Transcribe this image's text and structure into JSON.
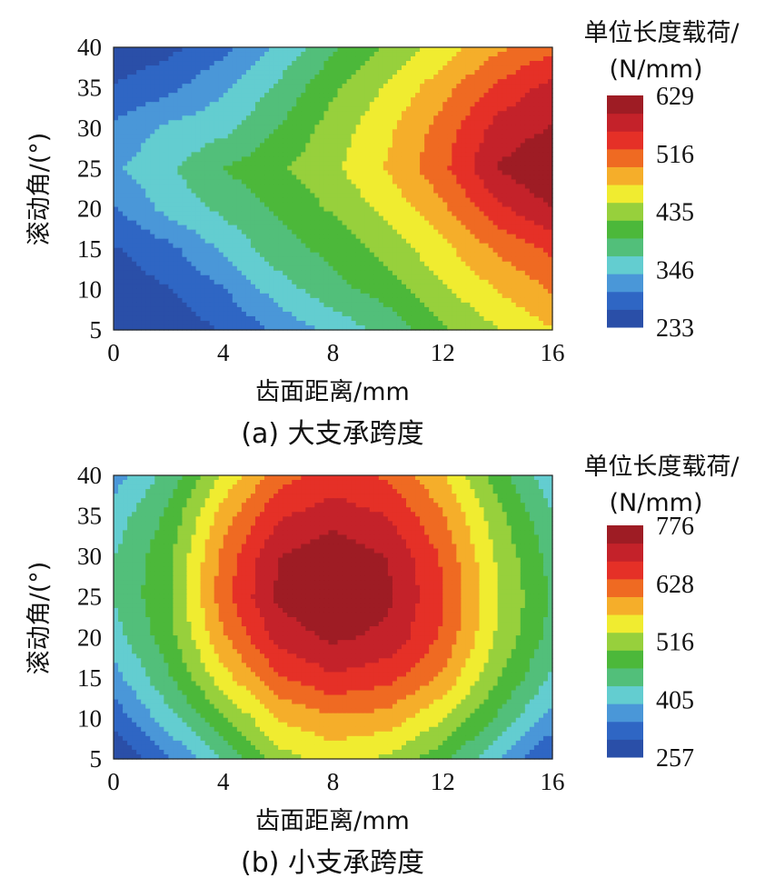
{
  "colors": {
    "palette": [
      "#2a4fa8",
      "#2f66c4",
      "#4a97d8",
      "#63cdd0",
      "#52bf7a",
      "#4cb83a",
      "#97d03c",
      "#f0ec30",
      "#f5ae2a",
      "#ef6a22",
      "#e53027",
      "#c4222a",
      "#9e1c24"
    ],
    "background": "#ffffff",
    "contour_line": "#222222"
  },
  "chart_data": [
    {
      "type": "heatmap",
      "caption": "(a)  大支承跨度",
      "xlabel": "齿面距离/mm",
      "ylabel": "滚动角/(°)",
      "xlim": [
        0,
        16
      ],
      "ylim": [
        5,
        40
      ],
      "xticks": [
        "0",
        "4",
        "8",
        "12",
        "16"
      ],
      "yticks": [
        "5",
        "10",
        "15",
        "20",
        "25",
        "30",
        "35",
        "40"
      ],
      "colorbar": {
        "title_line1": "单位长度载荷/",
        "title_line2": "(N/mm)",
        "ticks": [
          "629",
          "516",
          "435",
          "346",
          "233"
        ],
        "min": 233,
        "max": 629
      },
      "grid": false,
      "x": [
        0,
        2,
        4,
        6,
        8,
        10,
        12,
        14,
        16
      ],
      "y": [
        5,
        10,
        15,
        20,
        25,
        30,
        35,
        40
      ],
      "z": [
        [
          233,
          245,
          265,
          300,
          335,
          365,
          410,
          445,
          475
        ],
        [
          245,
          262,
          292,
          340,
          375,
          400,
          442,
          478,
          510
        ],
        [
          260,
          285,
          330,
          372,
          395,
          428,
          468,
          512,
          545
        ],
        [
          290,
          335,
          362,
          390,
          420,
          455,
          500,
          560,
          600
        ],
        [
          318,
          350,
          385,
          410,
          440,
          480,
          530,
          600,
          629
        ],
        [
          300,
          330,
          345,
          385,
          430,
          470,
          520,
          580,
          600
        ],
        [
          265,
          285,
          320,
          360,
          410,
          450,
          495,
          545,
          580
        ],
        [
          240,
          255,
          285,
          330,
          380,
          420,
          460,
          500,
          530
        ]
      ]
    },
    {
      "type": "heatmap",
      "caption": "(b)  小支承跨度",
      "xlabel": "齿面距离/mm",
      "ylabel": "滚动角/(°)",
      "xlim": [
        0,
        16
      ],
      "ylim": [
        5,
        40
      ],
      "xticks": [
        "0",
        "4",
        "8",
        "12",
        "16"
      ],
      "yticks": [
        "5",
        "10",
        "15",
        "20",
        "25",
        "30",
        "35",
        "40"
      ],
      "colorbar": {
        "title_line1": "单位长度载荷/",
        "title_line2": "(N/mm)",
        "ticks": [
          "776",
          "628",
          "516",
          "405",
          "257"
        ],
        "min": 257,
        "max": 776
      },
      "grid": false,
      "x": [
        0,
        2,
        4,
        6,
        8,
        10,
        12,
        14,
        16
      ],
      "y": [
        5,
        10,
        15,
        20,
        25,
        30,
        35,
        40
      ],
      "z": [
        [
          257,
          330,
          420,
          520,
          550,
          530,
          470,
          380,
          290
        ],
        [
          310,
          400,
          490,
          580,
          610,
          600,
          540,
          450,
          360
        ],
        [
          360,
          450,
          560,
          650,
          690,
          670,
          610,
          500,
          410
        ],
        [
          400,
          480,
          610,
          710,
          745,
          725,
          650,
          530,
          440
        ],
        [
          420,
          490,
          640,
          745,
          776,
          745,
          660,
          540,
          450
        ],
        [
          415,
          485,
          630,
          735,
          765,
          735,
          650,
          530,
          440
        ],
        [
          395,
          465,
          595,
          690,
          720,
          695,
          620,
          510,
          420
        ],
        [
          360,
          430,
          545,
          640,
          670,
          650,
          580,
          475,
          390
        ]
      ]
    }
  ]
}
